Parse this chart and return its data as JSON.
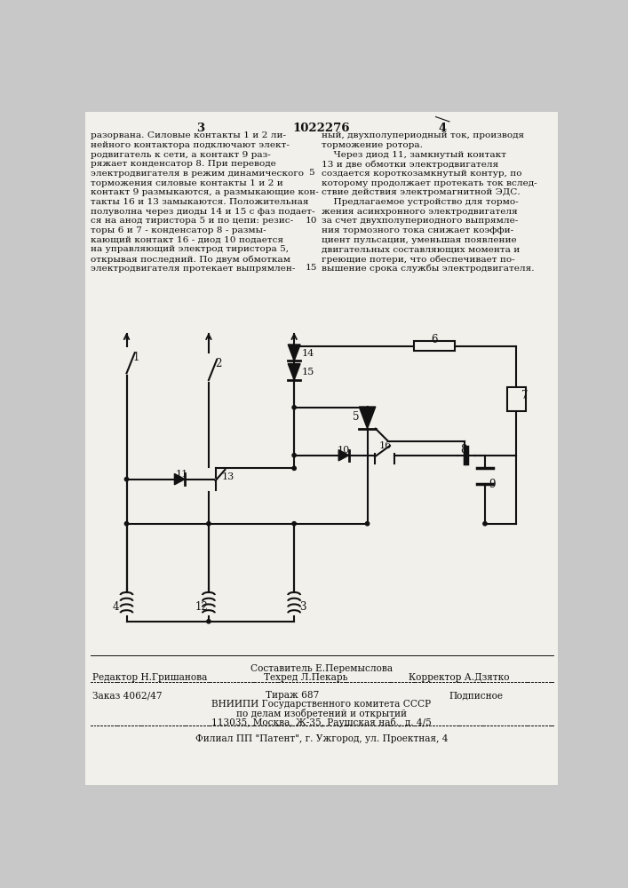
{
  "page_number_left": "3",
  "patent_number": "1022276",
  "page_number_right": "4",
  "left_column_text": [
    "разорвана. Силовые контакты 1 и 2 ли-",
    "нейного контактора подключают элект-",
    "родвигатель к сети, а контакт 9 раз-",
    "ряжает конденсатор 8. При переводе",
    "электродвигателя в режим динамического",
    "торможения силовые контакты 1 и 2 и",
    "контакт 9 размыкаются, а размыкающие кон-",
    "такты 16 и 13 замыкаются. Положительная",
    "полуволна через диоды 14 и 15 с фаз подает-",
    "ся на анод тиристора 5 и по цепи: резис-",
    "торы 6 и 7 - конденсатор 8 - размы-",
    "кающий контакт 16 - диод 10 подается",
    "на управляющий электрод тиристора 5,",
    "открывая последний. По двум обмоткам",
    "электродвигателя протекает выпрямлен-"
  ],
  "right_column_text": [
    "ный, двухполупериодный ток, производя",
    "торможение ротора.",
    "    Через диод 11, замкнутый контакт",
    "13 и две обмотки электродвигателя",
    "создается короткозамкнутый контур, по",
    "которому продолжает протекать ток вслед-",
    "ствие действия электромагнитной ЭДС.",
    "    Предлагаемое устройство для тормо-",
    "жения асинхронного электродвигателя",
    "за счет двухполупериодного выпрямле-",
    "ния тормозного тока снижает коэффи-",
    "циент пульсации, уменьшая появление",
    "двигательных составляющих момента и",
    "греющие потери, что обеспечивает по-",
    "вышение срока службы электродвигателя."
  ],
  "line_numbers": [
    "5",
    "10",
    "15"
  ],
  "footer_compositor": "Составитель Е.Перемыслова",
  "footer_editor": "Редактор Н.Гришанова",
  "footer_techred": "Техред Л.Пекарь",
  "footer_corrector": "Корректор А.Дзятко",
  "footer_order": "Заказ 4062/47",
  "footer_print": "Тираж 687",
  "footer_subscription": "Подписное",
  "footer_org1": "ВНИИПИ Государственного комитета СССР",
  "footer_org2": "по делам изобретений и открытий",
  "footer_org3": "113035, Москва, Ж-35, Раушская наб., д. 4/5",
  "footer_branch": "Филиал ПП \"Патент\", г. Ужгород, ул. Проектная, 4",
  "bg_color": "#c8c8c8",
  "page_color": "#f2f0eb"
}
